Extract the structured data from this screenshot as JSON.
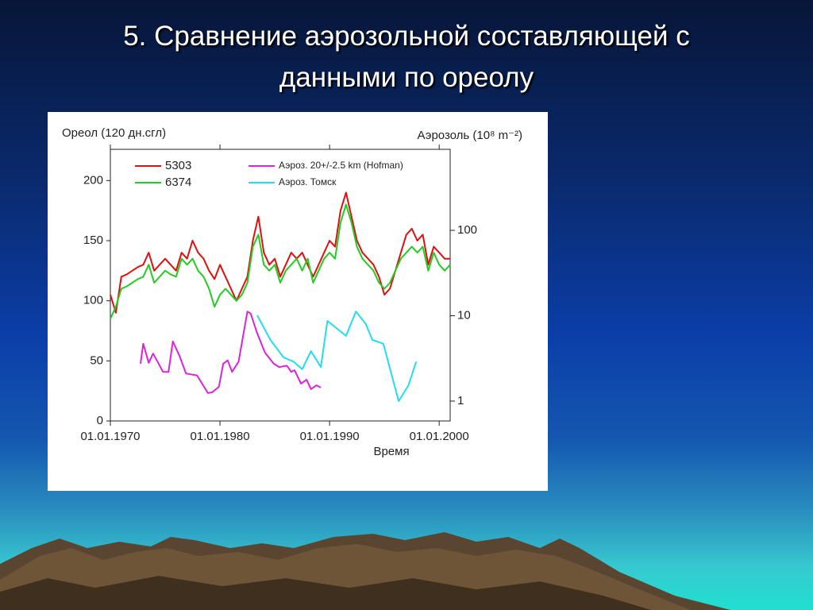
{
  "title": "5. Сравнение аэрозольной составляющей с данными по ореолу",
  "chart_data": {
    "type": "line",
    "y_label": "Ореол (120 дн.сгл)",
    "y2_label": "Аэрозоль (10⁸ m⁻²)",
    "x_label": "Время",
    "xlim": [
      1970,
      2001
    ],
    "xticks": [
      {
        "value": 1970,
        "label": "01.01.1970"
      },
      {
        "value": 1980,
        "label": "01.01.1980"
      },
      {
        "value": 1990,
        "label": "01.01.1990"
      },
      {
        "value": 2000,
        "label": "01.01.2000"
      }
    ],
    "ylim": [
      0,
      226
    ],
    "yticks": [
      0,
      50,
      100,
      150,
      200
    ],
    "y2lim": [
      0.585,
      890
    ],
    "y2ticks": [
      1,
      10,
      100
    ],
    "y2_log": true,
    "series": [
      {
        "name": "5303",
        "color": "#e01010",
        "x": [
          1970,
          1970.5,
          1971,
          1971.5,
          1972,
          1972.5,
          1973,
          1973.5,
          1974,
          1974.5,
          1975,
          1975.5,
          1976,
          1976.5,
          1977,
          1977.5,
          1978,
          1978.5,
          1979,
          1979.5,
          1980,
          1980.5,
          1981,
          1981.5,
          1982,
          1982.5,
          1983,
          1983.5,
          1984,
          1984.5,
          1985,
          1985.5,
          1986,
          1986.5,
          1987,
          1987.5,
          1988,
          1988.5,
          1989,
          1989.5,
          1990,
          1990.5,
          1991,
          1991.5,
          1992,
          1992.5,
          1993,
          1993.5,
          1994,
          1994.5,
          1995,
          1995.5,
          1996,
          1996.5,
          1997,
          1997.5,
          1998,
          1998.5,
          1999,
          1999.5,
          2000,
          2000.5,
          2001
        ],
        "values": [
          105,
          90,
          120,
          122,
          125,
          128,
          130,
          140,
          125,
          130,
          135,
          130,
          125,
          140,
          135,
          150,
          140,
          135,
          125,
          118,
          130,
          120,
          110,
          100,
          110,
          120,
          150,
          170,
          140,
          130,
          135,
          120,
          130,
          140,
          135,
          140,
          130,
          120,
          130,
          140,
          150,
          145,
          175,
          190,
          170,
          150,
          140,
          135,
          130,
          120,
          105,
          110,
          125,
          140,
          155,
          160,
          150,
          155,
          130,
          145,
          140,
          135,
          135
        ]
      },
      {
        "name": "6374",
        "color": "#22cc22",
        "x": [
          1970,
          1970.5,
          1971,
          1971.5,
          1972,
          1972.5,
          1973,
          1973.5,
          1974,
          1974.5,
          1975,
          1975.5,
          1976,
          1976.5,
          1977,
          1977.5,
          1978,
          1978.5,
          1979,
          1979.5,
          1980,
          1980.5,
          1981,
          1981.5,
          1982,
          1982.5,
          1983,
          1983.5,
          1984,
          1984.5,
          1985,
          1985.5,
          1986,
          1986.5,
          1987,
          1987.5,
          1988,
          1988.5,
          1989,
          1989.5,
          1990,
          1990.5,
          1991,
          1991.5,
          1992,
          1992.5,
          1993,
          1993.5,
          1994,
          1994.5,
          1995,
          1995.5,
          1996,
          1996.5,
          1997,
          1997.5,
          1998,
          1998.5,
          1999,
          1999.5,
          2000,
          2000.5,
          2001
        ],
        "values": [
          85,
          95,
          110,
          112,
          115,
          118,
          120,
          130,
          115,
          120,
          125,
          122,
          120,
          135,
          130,
          135,
          125,
          120,
          110,
          95,
          105,
          110,
          105,
          100,
          105,
          115,
          145,
          155,
          130,
          125,
          130,
          115,
          125,
          130,
          135,
          125,
          135,
          115,
          125,
          135,
          140,
          135,
          165,
          180,
          165,
          145,
          135,
          130,
          125,
          115,
          110,
          115,
          125,
          135,
          140,
          145,
          140,
          145,
          125,
          140,
          130,
          125,
          130
        ]
      },
      {
        "name": "Аэроз. 20+/-2.5 km (Hofman)",
        "color": "#dd22dd",
        "axis": "y2",
        "x": [
          1972.75,
          1973.0,
          1973.5,
          1973.9,
          1974.3,
          1974.8,
          1975.3,
          1975.7,
          1976.3,
          1976.9,
          1977.9,
          1978.9,
          1979.3,
          1979.9,
          1980.3,
          1980.7,
          1981.1,
          1981.7,
          1982.5,
          1982.8,
          1983.4,
          1984.1,
          1984.9,
          1985.4,
          1986.1,
          1986.5,
          1986.8,
          1987.4,
          1987.9,
          1988.3,
          1988.8,
          1989.2
        ],
        "values": [
          2.74,
          4.7,
          2.8,
          3.6,
          2.9,
          2.2,
          2.2,
          5.0,
          3.4,
          2.1,
          2.0,
          1.24,
          1.27,
          1.47,
          2.74,
          3.0,
          2.2,
          2.9,
          11.2,
          10.6,
          6.2,
          3.7,
          2.74,
          2.5,
          2.6,
          2.2,
          2.3,
          1.6,
          1.78,
          1.38,
          1.53,
          1.44
        ]
      },
      {
        "name": "Аэроз. Томск",
        "color": "#22ddee",
        "axis": "y2",
        "x": [
          1983.4,
          1984.6,
          1985.8,
          1986.7,
          1987.5,
          1988.3,
          1989.2,
          1989.8,
          1991.5,
          1992.4,
          1993.3,
          1993.9,
          1994.9,
          1996.3,
          1997.2,
          1997.9
        ],
        "values": [
          10.1,
          5.2,
          3.25,
          2.9,
          2.36,
          3.85,
          2.5,
          8.7,
          5.8,
          11.2,
          8.0,
          5.2,
          4.7,
          1.0,
          1.53,
          2.9
        ]
      }
    ]
  }
}
